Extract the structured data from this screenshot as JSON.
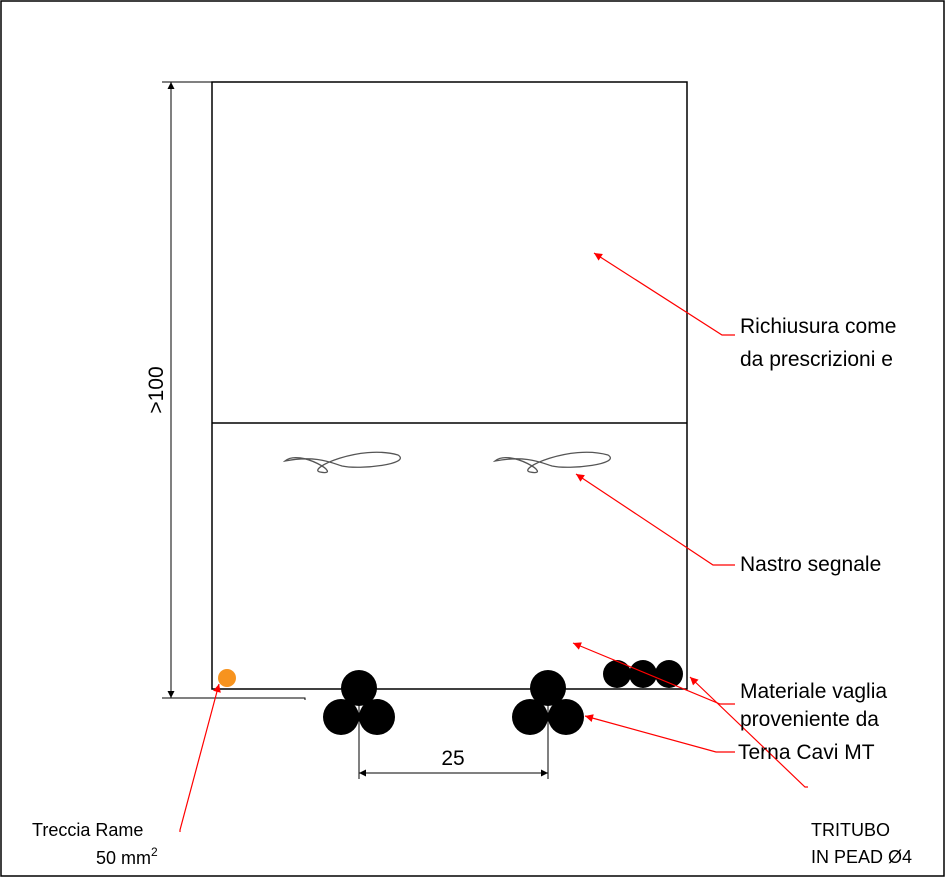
{
  "colors": {
    "outline": "#000000",
    "leader": "#ff0000",
    "tape": "#555555",
    "copper": "#f7931e",
    "background": "#ffffff"
  },
  "labels": {
    "dimension_height": ">100",
    "dimension_spacing": "25",
    "backfill_line1": "Richiusura come",
    "backfill_line2": "da prescrizioni e",
    "tape": "Nastro segnale",
    "sifted_line1": "Materiale vaglia",
    "sifted_line2": "proveniente da",
    "cables": "Terna Cavi MT",
    "tritubo_line1": "TRITUBO",
    "tritubo_line2": "IN PEAD Ø4",
    "copper_line1": "Treccia Rame",
    "copper_line2": "50 mm",
    "copper_superscript": "2"
  },
  "icons": {
    "cable": "filled-circle",
    "copper": "filled-circle",
    "tape": "twisted-ribbon"
  }
}
